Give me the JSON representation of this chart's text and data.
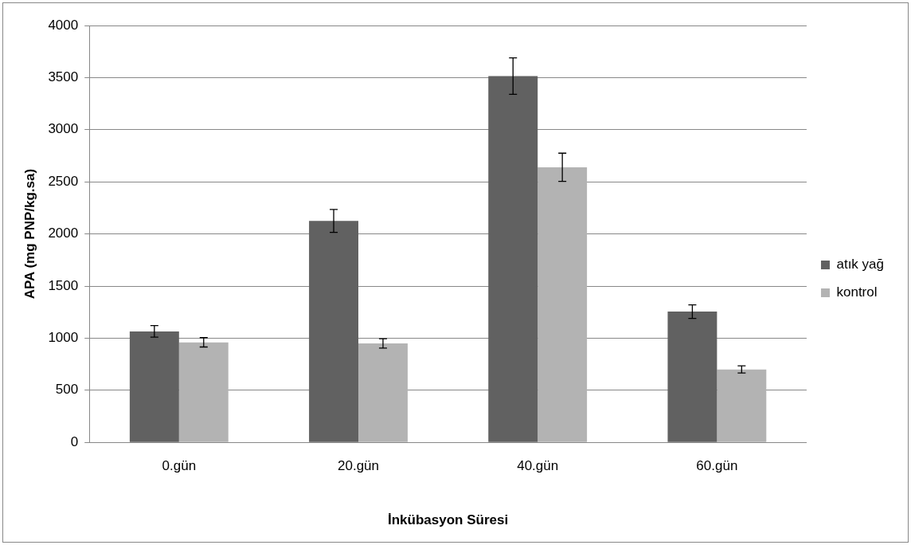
{
  "chart_data": {
    "type": "bar",
    "xlabel": "İnkübasyon Süresi",
    "ylabel": "APA (mg PNP/kg.sa)",
    "categories": [
      "0.gün",
      "20.gün",
      "40.gün",
      "60.gün"
    ],
    "series": [
      {
        "name": "atık yağ",
        "color": "#616161",
        "values": [
          1065,
          2125,
          3515,
          1255
        ],
        "errors": [
          55,
          110,
          175,
          65
        ]
      },
      {
        "name": "kontrol",
        "color": "#b3b3b3",
        "values": [
          960,
          950,
          2640,
          700
        ],
        "errors": [
          45,
          45,
          135,
          35
        ]
      }
    ],
    "ylim": [
      0,
      4000
    ],
    "yticks": [
      0,
      500,
      1000,
      1500,
      2000,
      2500,
      3000,
      3500,
      4000
    ],
    "grid": "y",
    "legend": "right"
  }
}
